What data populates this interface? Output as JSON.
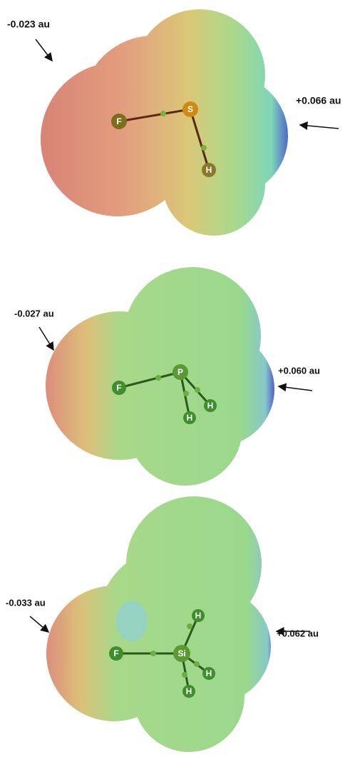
{
  "panels": [
    {
      "min_label": "-0.023 au",
      "max_label": "+0.066 au",
      "atoms": [
        "F",
        "S",
        "H"
      ]
    },
    {
      "min_label": "-0.027 au",
      "max_label": "+0.060 au",
      "atoms": [
        "F",
        "P",
        "H",
        "H"
      ]
    },
    {
      "min_label": "-0.033 au",
      "max_label": "+0.062 au",
      "atoms": [
        "F",
        "Si",
        "H",
        "H",
        "H"
      ]
    }
  ]
}
